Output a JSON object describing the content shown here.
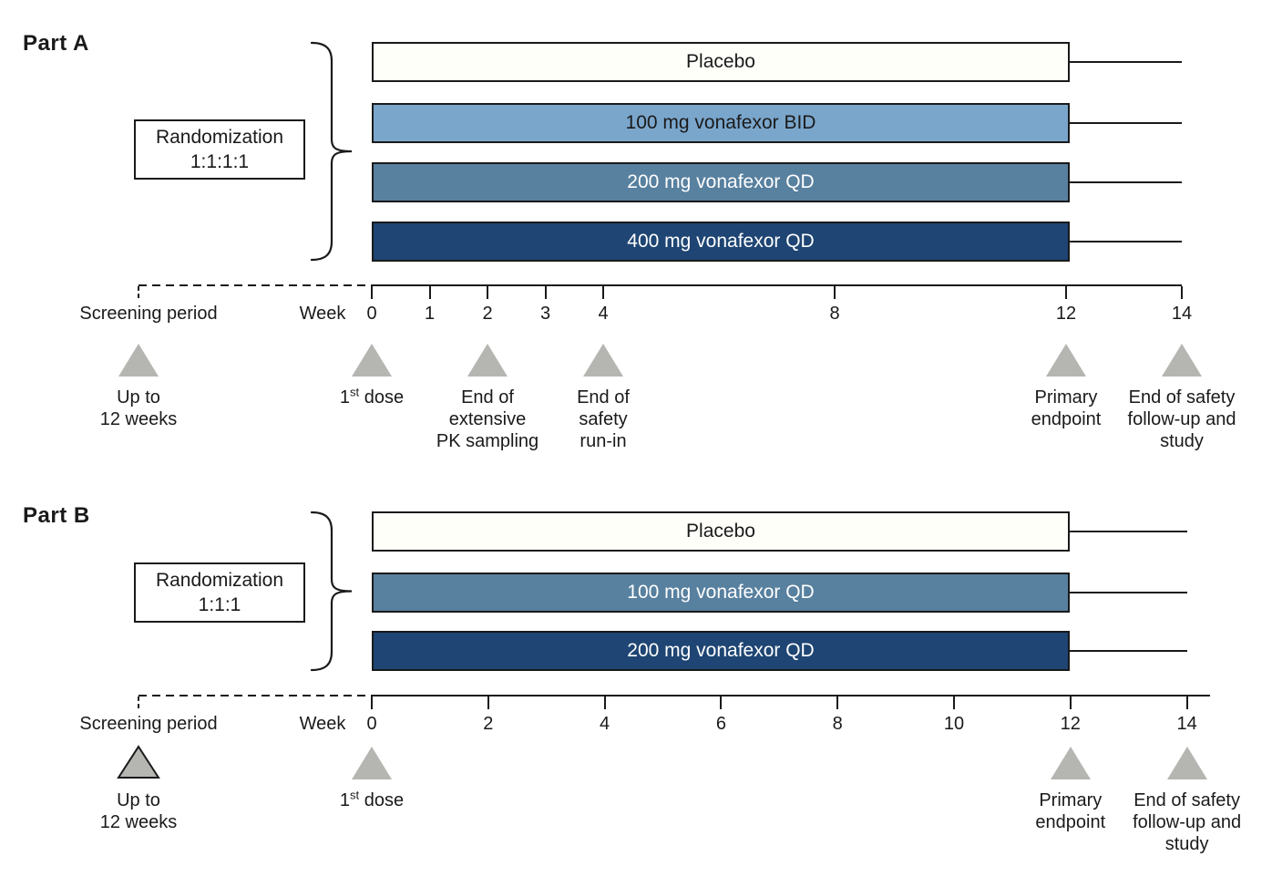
{
  "figure": {
    "background": "#FFFFFF",
    "line_color": "#1A1A1A",
    "triangle_color": "#B5B5B2"
  },
  "part_a": {
    "title": "Part A",
    "randomization_box": {
      "line1": "Randomization",
      "line2": "1:1:1:1"
    },
    "arms": [
      {
        "label": "Placebo",
        "fill": "#FFFFFA",
        "text_color": "#1A1A1A"
      },
      {
        "label": "100 mg vonafexor BID",
        "fill": "#7AA6CC",
        "text_color": "#1A1A1A"
      },
      {
        "label": "200 mg vonafexor QD",
        "fill": "#58809F",
        "text_color": "#FFFFFF"
      },
      {
        "label": "400 mg vonafexor QD",
        "fill": "#1E4573",
        "text_color": "#FFFFFF"
      }
    ],
    "axis": {
      "screening_label": "Screening period",
      "week_label": "Week",
      "ticks": [
        {
          "label": "0",
          "week": 0
        },
        {
          "label": "1",
          "week": 1
        },
        {
          "label": "2",
          "week": 2
        },
        {
          "label": "3",
          "week": 3
        },
        {
          "label": "4",
          "week": 4
        },
        {
          "label": "8",
          "week": 8
        },
        {
          "label": "12",
          "week": 12
        },
        {
          "label": "14",
          "week": 14
        }
      ]
    },
    "milestones": [
      {
        "lines": [
          "Up to",
          "12 weeks"
        ],
        "position": "screening",
        "outlined": false
      },
      {
        "lines": [
          "1^st^ dose"
        ],
        "week": 0,
        "outlined": false
      },
      {
        "lines": [
          "End of",
          "extensive",
          "PK sampling"
        ],
        "week": 2,
        "outlined": false
      },
      {
        "lines": [
          "End of",
          "safety",
          "run-in"
        ],
        "week": 4,
        "outlined": false
      },
      {
        "lines": [
          "Primary",
          "endpoint"
        ],
        "week": 12,
        "outlined": false
      },
      {
        "lines": [
          "End of safety",
          "follow-up and",
          "study"
        ],
        "week": 14,
        "outlined": false
      }
    ]
  },
  "part_b": {
    "title": "Part B",
    "randomization_box": {
      "line1": "Randomization",
      "line2": "1:1:1"
    },
    "arms": [
      {
        "label": "Placebo",
        "fill": "#FFFFFA",
        "text_color": "#1A1A1A"
      },
      {
        "label": "100 mg vonafexor QD",
        "fill": "#58809F",
        "text_color": "#FFFFFF"
      },
      {
        "label": "200 mg vonafexor QD",
        "fill": "#1E4573",
        "text_color": "#FFFFFF"
      }
    ],
    "axis": {
      "screening_label": "Screening period",
      "week_label": "Week",
      "ticks": [
        {
          "label": "0",
          "week": 0
        },
        {
          "label": "2",
          "week": 2
        },
        {
          "label": "4",
          "week": 4
        },
        {
          "label": "6",
          "week": 6
        },
        {
          "label": "8",
          "week": 8
        },
        {
          "label": "10",
          "week": 10
        },
        {
          "label": "12",
          "week": 12
        },
        {
          "label": "14",
          "week": 14
        }
      ]
    },
    "milestones": [
      {
        "lines": [
          "Up to",
          "12 weeks"
        ],
        "position": "screening",
        "outlined": true
      },
      {
        "lines": [
          "1^st^ dose"
        ],
        "week": 0,
        "outlined": false
      },
      {
        "lines": [
          "Primary",
          "endpoint"
        ],
        "week": 12,
        "outlined": false
      },
      {
        "lines": [
          "End of safety",
          "follow-up and",
          "study"
        ],
        "week": 14,
        "outlined": false
      }
    ]
  }
}
